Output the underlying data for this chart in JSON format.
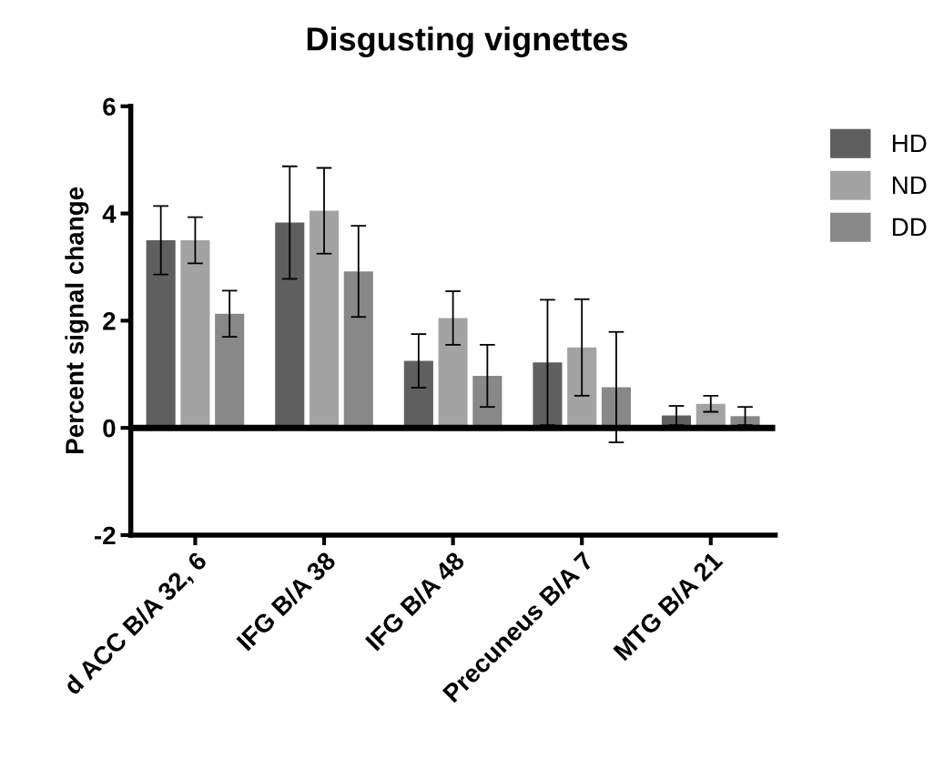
{
  "chart_data": {
    "type": "bar",
    "title": "Disgusting vignettes",
    "ylabel": "Percent signal change",
    "categories": [
      "d ACC B/A 32, 6",
      "IFG B/A 38",
      "IFG B/A 48",
      "Precuneus B/A 7",
      "MTG B/A 21"
    ],
    "series": [
      {
        "name": "HD",
        "color": "#5f5f5f",
        "values": [
          3.5,
          3.83,
          1.25,
          1.22,
          0.23
        ],
        "errors": [
          0.64,
          1.05,
          0.5,
          1.17,
          0.18
        ]
      },
      {
        "name": "ND",
        "color": "#a3a3a3",
        "values": [
          3.5,
          4.05,
          2.05,
          1.5,
          0.45
        ],
        "errors": [
          0.43,
          0.8,
          0.5,
          0.9,
          0.15
        ]
      },
      {
        "name": "DD",
        "color": "#888888",
        "values": [
          2.13,
          2.92,
          0.97,
          0.76,
          0.22
        ],
        "errors": [
          0.43,
          0.85,
          0.58,
          1.03,
          0.17
        ]
      }
    ],
    "ylim": [
      -2,
      6
    ],
    "yticks": [
      -2,
      0,
      2,
      4,
      6
    ],
    "ref_lines": [
      {
        "axis": "y",
        "value": 0,
        "label": null
      }
    ],
    "grid": false,
    "legend": "top right"
  }
}
